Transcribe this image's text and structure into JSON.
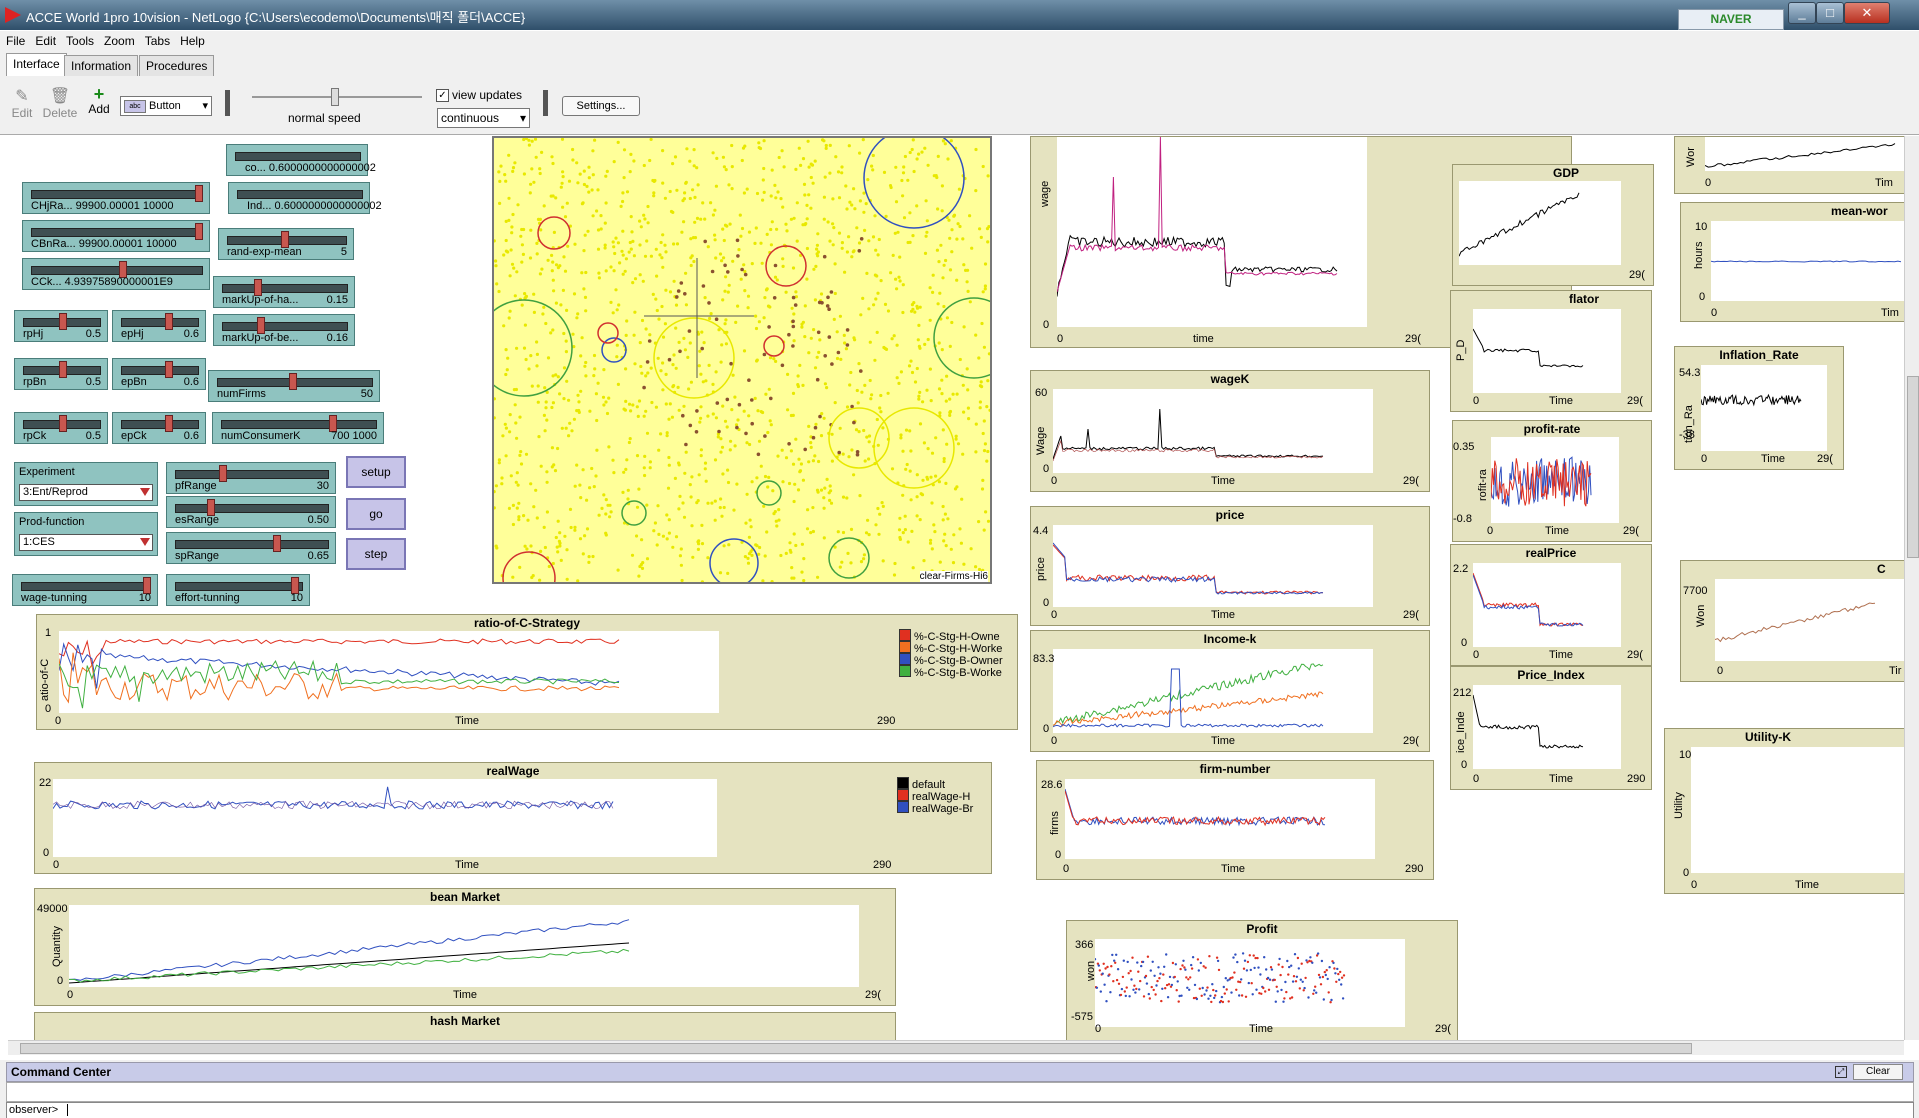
{
  "window": {
    "title": "ACCE World 1pro 10vision - NetLogo {C:\\Users\\ecodemo\\Documents\\매직 폴더\\ACCE}",
    "search_brand": "NAVER"
  },
  "menu": [
    "File",
    "Edit",
    "Tools",
    "Zoom",
    "Tabs",
    "Help"
  ],
  "tabs": [
    "Interface",
    "Information",
    "Procedures"
  ],
  "toolbar": {
    "edit": "Edit",
    "delete": "Delete",
    "add": "Add",
    "widget_type": "Button",
    "speed_label": "normal speed",
    "view_updates": "view updates",
    "update_mode": "continuous",
    "settings": "Settings..."
  },
  "sliders": [
    {
      "label": "co...",
      "value": "0.6000000000000002"
    },
    {
      "label": "Ind...",
      "value": "0.6000000000000002"
    },
    {
      "label": "CHjRa...",
      "value": "99900.00001 10000"
    },
    {
      "label": "CBnRa...",
      "value": "99900.00001 10000"
    },
    {
      "label": "CCk...",
      "value": "4.93975890000001E9"
    },
    {
      "label": "rand-exp-mean",
      "value": "5"
    },
    {
      "label": "markUp-of-ha...",
      "value": "0.15"
    },
    {
      "label": "markUp-of-be...",
      "value": "0.16"
    },
    {
      "label": "rpHj",
      "value": "0.5"
    },
    {
      "label": "epHj",
      "value": "0.6"
    },
    {
      "label": "rpBn",
      "value": "0.5"
    },
    {
      "label": "epBn",
      "value": "0.6"
    },
    {
      "label": "numFirms",
      "value": "50"
    },
    {
      "label": "rpCk",
      "value": "0.5"
    },
    {
      "label": "epCk",
      "value": "0.6"
    },
    {
      "label": "numConsumerK",
      "value": "700 1000"
    },
    {
      "label": "pfRange",
      "value": "30"
    },
    {
      "label": "esRange",
      "value": "0.50"
    },
    {
      "label": "spRange",
      "value": "0.65"
    },
    {
      "label": "wage-tunning",
      "value": "10"
    },
    {
      "label": "effort-tunning",
      "value": "10"
    }
  ],
  "choosers": [
    {
      "label": "Experiment",
      "value": "3:Ent/Reprod"
    },
    {
      "label": "Prod-function",
      "value": "1:CES"
    }
  ],
  "buttons": {
    "setup": "setup",
    "go": "go",
    "step": "step"
  },
  "view_label": "clear-Firms-Hi6",
  "plots": {
    "ratio": {
      "title": "ratio-of-C-Strategy",
      "ylabel": "atio-of-C",
      "ymin": "0",
      "ymax": "1",
      "xmin": "0",
      "xmax": "290",
      "xlabel": "Time",
      "legend": [
        {
          "name": "%-C-Stg-H-Owne",
          "color": "#e03020"
        },
        {
          "name": "%-C-Stg-H-Worke",
          "color": "#f07020"
        },
        {
          "name": "%-C-Stg-B-Owner",
          "color": "#3050c0"
        },
        {
          "name": "%-C-Stg-B-Worke",
          "color": "#40b040"
        }
      ]
    },
    "realWage": {
      "title": "realWage",
      "ymin": "0",
      "ymax": "22",
      "xmin": "0",
      "xmax": "290",
      "xlabel": "Time",
      "legend": [
        {
          "name": "default",
          "color": "#000000"
        },
        {
          "name": "realWage-H",
          "color": "#e03020"
        },
        {
          "name": "realWage-Br",
          "color": "#3050c0"
        }
      ]
    },
    "bean": {
      "title": "bean Market",
      "ylabel": "Quantity",
      "ymin": "0",
      "ymax": "49000",
      "xmin": "0",
      "xmax": "29(",
      "xlabel": "Time"
    },
    "hash": {
      "title": "hash Market"
    },
    "wage": {
      "ylabel": "wage",
      "ymin": "0",
      "xmin": "0",
      "xmax": "29(",
      "xlabel": "time"
    },
    "wageK": {
      "title": "wageK",
      "ylabel": "Wage",
      "ymin": "0",
      "ymax": "60",
      "xmin": "0",
      "xmax": "29(",
      "xlabel": "Time"
    },
    "price": {
      "title": "price",
      "ylabel": "price",
      "ymin": "0",
      "ymax": "4.4",
      "xmin": "0",
      "xmax": "29(",
      "xlabel": "Time"
    },
    "incomeK": {
      "title": "Income-k",
      "ymin": "0",
      "ymax": "83.3",
      "xmin": "0",
      "xmax": "29(",
      "xlabel": "Time"
    },
    "firmNumber": {
      "title": "firm-number",
      "ylabel": "firms",
      "ymin": "0",
      "ymax": "28.6",
      "xmin": "0",
      "xmax": "290",
      "xlabel": "Time"
    },
    "profit": {
      "title": "Profit",
      "ylabel": "won",
      "ymin": "-575",
      "ymax": "366",
      "xmin": "0",
      "xmax": "29(",
      "xlabel": "Time"
    },
    "gdp": {
      "title": "GDP",
      "xmax": "29("
    },
    "deflator": {
      "title": "flator",
      "ylabel": "P_D",
      "xmin": "0",
      "xmax": "29(",
      "xlabel": "Time"
    },
    "profitRate": {
      "title": "profit-rate",
      "ylabel": "rofit-ra",
      "ymin": "-0.8",
      "ymax": "0.35",
      "xmin": "0",
      "xmax": "29(",
      "xlabel": "Time"
    },
    "realPrice": {
      "title": "realPrice",
      "ymin": "0",
      "ymax": "2.2",
      "xmin": "0",
      "xmax": "29(",
      "xlabel": "Time"
    },
    "priceIndex": {
      "title": "Price_Index",
      "ylabel": "ice_Inde",
      "ymin": "0",
      "ymax": "212",
      "xmin": "0",
      "xmax": "290",
      "xlabel": "Time"
    },
    "work": {
      "ylabel": "Wor",
      "xmin": "0",
      "xmax": "Tim"
    },
    "meanWork": {
      "title": "mean-wor",
      "ylabel": "hours",
      "ymin": "0",
      "ymax": "10",
      "xmin": "0",
      "xmax": "Tim"
    },
    "inflation": {
      "title": "Inflation_Rate",
      "ylabel": "tion_Ra",
      "ymin": "-38",
      "ymax": "54.3",
      "xmin": "0",
      "xmax": "29(",
      "xlabel": "Time"
    },
    "c": {
      "title": "C",
      "ylabel": "Won",
      "ymax": "7700",
      "xmin": "0",
      "xmax": "Tir"
    },
    "utilityK": {
      "title": "Utility-K",
      "ylabel": "Utility",
      "ymin": "0",
      "ymax": "10",
      "xmin": "0",
      "xlabel": "Time"
    }
  },
  "command_center": {
    "title": "Command Center",
    "clear": "Clear",
    "prompt": "observer>"
  }
}
